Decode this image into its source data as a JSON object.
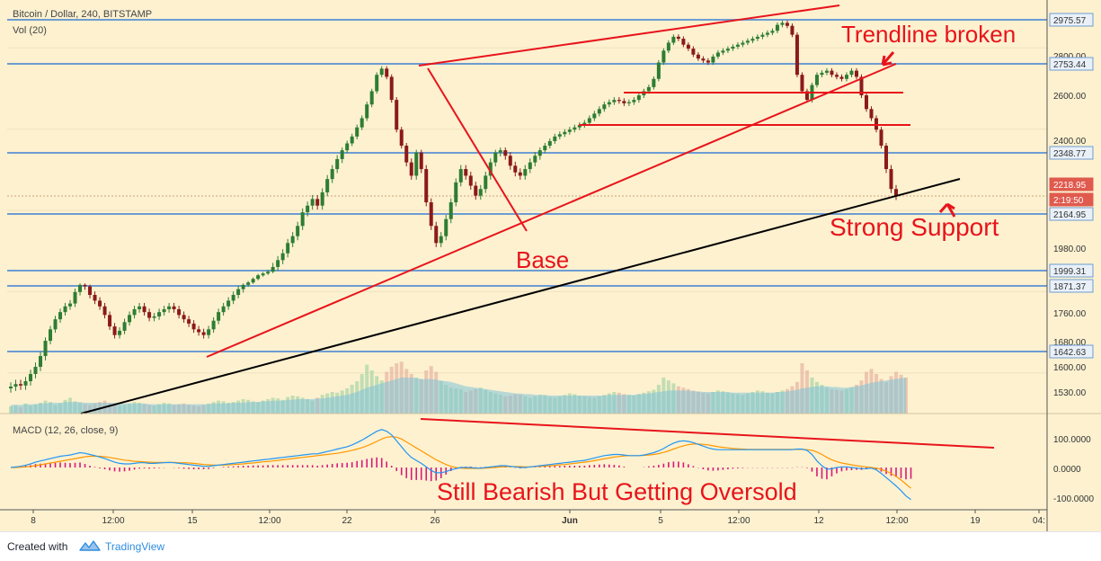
{
  "header": {
    "title": "Bitcoin / Dollar, 240, BITSTAMP",
    "vol_label": "Vol (20)",
    "macd_label": "MACD (12, 26, close, 9)"
  },
  "annotations": {
    "trendline_broken": "Trendline broken",
    "strong_support": "Strong Support",
    "base": "Base",
    "macd_note": "Still Bearish But Getting Oversold"
  },
  "footer": {
    "created_with": "Created with",
    "brand": "TradingView"
  },
  "colors": {
    "background": "#fdf1d0",
    "up_candle": "#2e7d32",
    "down_candle": "#8b1a1a",
    "annotation_red": "#e8141b",
    "support_line": "#000000",
    "level_line": "#6e9cd2",
    "macd_line": "#2196f3",
    "signal_line": "#ff9800",
    "histogram": "#d81b7a"
  },
  "chart_data": [
    {
      "type": "candlestick",
      "title": "Bitcoin / Dollar, 240, BITSTAMP",
      "x_tick_labels": [
        "8",
        "12:00",
        "15",
        "12:00",
        "22",
        "26",
        "Jun",
        "5",
        "12:00",
        "12",
        "12:00",
        "19",
        "04:"
      ],
      "y_tick_labels": [
        "2975.57",
        "2800.00",
        "2753.44",
        "2600.00",
        "2400.00",
        "2348.77",
        "2218.95",
        "2:19:50",
        "2164.95",
        "1980.00",
        "1999.31",
        "1871.37",
        "1760.00",
        "1680.00",
        "1642.63",
        "1600.00",
        "1530.00"
      ],
      "y_range": [
        1480,
        3080
      ],
      "price_levels": [
        2975.57,
        2753.44,
        2348.77,
        2164.95,
        1999.31,
        1871.37,
        1642.63
      ],
      "current_price": 2218.95,
      "countdown": "2:19:50",
      "grid": true,
      "close": [
        1545,
        1552,
        1548,
        1560,
        1580,
        1600,
        1630,
        1680,
        1720,
        1755,
        1780,
        1800,
        1810,
        1850,
        1880,
        1870,
        1840,
        1820,
        1800,
        1770,
        1730,
        1700,
        1715,
        1745,
        1770,
        1790,
        1800,
        1780,
        1760,
        1765,
        1780,
        1790,
        1800,
        1790,
        1770,
        1755,
        1740,
        1720,
        1710,
        1700,
        1720,
        1750,
        1780,
        1800,
        1820,
        1840,
        1860,
        1880,
        1900,
        1930,
        1960,
        1975,
        1990,
        2010,
        2030,
        2050,
        2080,
        2100,
        2130,
        2170,
        2190,
        2210,
        2190,
        2230,
        2270,
        2300,
        2330,
        2360,
        2390,
        2420,
        2460,
        2500,
        2560,
        2620,
        2700,
        2730,
        2690,
        2580,
        2450,
        2380,
        2320,
        2280,
        2350,
        2300,
        2200,
        2130,
        2080,
        2100,
        2150,
        2200,
        2260,
        2300,
        2280,
        2250,
        2220,
        2240,
        2280,
        2320,
        2350,
        2360,
        2340,
        2310,
        2290,
        2280,
        2300,
        2320,
        2340,
        2360,
        2380,
        2400,
        2420,
        2430,
        2440,
        2450,
        2460,
        2470,
        2480,
        2500,
        2520,
        2540,
        2560,
        2570,
        2580,
        2575,
        2565,
        2570,
        2580,
        2600,
        2620,
        2640,
        2680,
        2760,
        2820,
        2860,
        2890,
        2880,
        2850,
        2830,
        2800,
        2780,
        2770,
        2760,
        2790,
        2810,
        2820,
        2830,
        2840,
        2850,
        2860,
        2870,
        2880,
        2890,
        2900,
        2910,
        2920,
        2950,
        2960,
        2945,
        2900,
        2700,
        2620,
        2580,
        2650,
        2700,
        2710,
        2720,
        2700,
        2690,
        2680,
        2700,
        2720,
        2690,
        2600,
        2540,
        2500,
        2450,
        2380,
        2300,
        2240,
        2219
      ]
    },
    {
      "type": "bar",
      "title": "Vol (20)",
      "y_range": [
        0,
        100
      ],
      "values": [
        10,
        12,
        9,
        14,
        11,
        13,
        15,
        18,
        16,
        12,
        14,
        19,
        22,
        17,
        15,
        13,
        12,
        14,
        16,
        18,
        15,
        13,
        11,
        12,
        14,
        16,
        15,
        13,
        12,
        11,
        13,
        15,
        14,
        12,
        13,
        14,
        12,
        11,
        10,
        12,
        14,
        16,
        18,
        17,
        15,
        16,
        18,
        20,
        19,
        17,
        16,
        18,
        20,
        22,
        21,
        19,
        23,
        25,
        24,
        22,
        20,
        18,
        22,
        26,
        28,
        30,
        29,
        32,
        35,
        40,
        45,
        55,
        68,
        60,
        52,
        46,
        58,
        65,
        70,
        72,
        62,
        55,
        50,
        48,
        60,
        66,
        58,
        45,
        40,
        36,
        35,
        34,
        30,
        32,
        34,
        36,
        33,
        30,
        28,
        26,
        24,
        25,
        27,
        26,
        24,
        22,
        24,
        26,
        25,
        23,
        22,
        24,
        26,
        28,
        27,
        25,
        24,
        23,
        22,
        24,
        26,
        28,
        30,
        29,
        27,
        26,
        25,
        27,
        29,
        31,
        33,
        40,
        50,
        46,
        42,
        38,
        36,
        34,
        32,
        30,
        29,
        28,
        30,
        32,
        31,
        29,
        28,
        27,
        26,
        28,
        30,
        32,
        31,
        29,
        28,
        30,
        32,
        34,
        38,
        44,
        70,
        60,
        50,
        44,
        40,
        36,
        34,
        33,
        32,
        34,
        36,
        40,
        46,
        58,
        62,
        55,
        48,
        44,
        52,
        58,
        54,
        50
      ],
      "ma_values": [
        12,
        12,
        12,
        13,
        13,
        13,
        14,
        14,
        15,
        15,
        15,
        16,
        16,
        16,
        16,
        15,
        15,
        15,
        15,
        15,
        15,
        15,
        14,
        14,
        14,
        14,
        14,
        14,
        13,
        13,
        13,
        13,
        13,
        13,
        13,
        13,
        13,
        13,
        13,
        13,
        13,
        14,
        14,
        14,
        14,
        15,
        15,
        15,
        16,
        16,
        16,
        17,
        17,
        18,
        18,
        18,
        19,
        19,
        20,
        20,
        20,
        20,
        21,
        21,
        22,
        23,
        24,
        25,
        26,
        28,
        30,
        33,
        36,
        38,
        40,
        42,
        44,
        46,
        48,
        50,
        50,
        50,
        49,
        48,
        48,
        48,
        47,
        46,
        45,
        44,
        42,
        40,
        38,
        37,
        36,
        35,
        34,
        33,
        32,
        31,
        30,
        29,
        28,
        28,
        27,
        27,
        26,
        26,
        26,
        25,
        25,
        25,
        25,
        25,
        25,
        25,
        25,
        25,
        25,
        25,
        25,
        26,
        26,
        26,
        26,
        26,
        26,
        27,
        27,
        28,
        29,
        30,
        31,
        32,
        32,
        32,
        32,
        32,
        31,
        31,
        30,
        30,
        30,
        30,
        30,
        30,
        29,
        29,
        29,
        29,
        29,
        29,
        29,
        29,
        29,
        30,
        30,
        31,
        32,
        33,
        35,
        36,
        37,
        38,
        38,
        38,
        37,
        37,
        36,
        36,
        37,
        38,
        39,
        41,
        43,
        44,
        45,
        46,
        47,
        48,
        49,
        50
      ]
    },
    {
      "type": "line",
      "title": "MACD (12, 26, close, 9)",
      "y_tick_labels": [
        "100.0000",
        "0.0000",
        "-100.0000"
      ],
      "y_range": [
        -140,
        160
      ],
      "series": [
        {
          "name": "MACD",
          "values": [
            0,
            2,
            4,
            8,
            12,
            18,
            22,
            26,
            30,
            34,
            38,
            40,
            42,
            46,
            50,
            48,
            44,
            40,
            35,
            30,
            24,
            18,
            14,
            12,
            12,
            14,
            16,
            16,
            14,
            14,
            15,
            16,
            17,
            16,
            14,
            12,
            10,
            8,
            6,
            4,
            4,
            6,
            8,
            10,
            12,
            14,
            16,
            18,
            20,
            22,
            24,
            26,
            28,
            30,
            32,
            34,
            36,
            38,
            40,
            42,
            44,
            46,
            46,
            50,
            54,
            58,
            62,
            66,
            70,
            76,
            84,
            92,
            102,
            112,
            122,
            128,
            122,
            110,
            90,
            70,
            50,
            34,
            24,
            14,
            2,
            -10,
            -18,
            -18,
            -14,
            -8,
            -4,
            0,
            0,
            0,
            -2,
            -2,
            0,
            2,
            4,
            6,
            6,
            4,
            2,
            0,
            0,
            2,
            4,
            6,
            8,
            10,
            12,
            14,
            16,
            18,
            20,
            22,
            24,
            28,
            32,
            36,
            40,
            42,
            44,
            44,
            42,
            40,
            40,
            40,
            42,
            46,
            50,
            56,
            64,
            74,
            82,
            88,
            90,
            88,
            84,
            78,
            72,
            66,
            62,
            60,
            60,
            60,
            60,
            60,
            60,
            60,
            60,
            60,
            60,
            60,
            60,
            60,
            60,
            60,
            60,
            62,
            62,
            58,
            44,
            22,
            6,
            -6,
            -4,
            0,
            2,
            2,
            0,
            -2,
            -4,
            -4,
            -2,
            -8,
            -20,
            -34,
            -48,
            -62,
            -78,
            -96,
            -108
          ]
        },
        {
          "name": "Signal",
          "values": [
            0,
            0,
            1,
            2,
            4,
            6,
            9,
            12,
            15,
            18,
            21,
            24,
            27,
            30,
            33,
            36,
            38,
            38,
            38,
            36,
            34,
            31,
            28,
            25,
            23,
            21,
            20,
            19,
            18,
            17,
            17,
            17,
            17,
            17,
            16,
            16,
            15,
            14,
            12,
            10,
            9,
            8,
            8,
            8,
            9,
            10,
            11,
            12,
            14,
            15,
            17,
            19,
            20,
            22,
            24,
            26,
            28,
            30,
            32,
            34,
            36,
            38,
            40,
            42,
            44,
            46,
            48,
            51,
            54,
            58,
            62,
            67,
            73,
            80,
            88,
            96,
            102,
            104,
            102,
            96,
            86,
            76,
            66,
            56,
            46,
            36,
            26,
            18,
            10,
            4,
            0,
            -2,
            -3,
            -3,
            -3,
            -3,
            -2,
            -1,
            0,
            2,
            3,
            3,
            3,
            3,
            2,
            2,
            3,
            4,
            5,
            6,
            7,
            9,
            10,
            12,
            14,
            16,
            18,
            20,
            23,
            26,
            29,
            32,
            35,
            37,
            39,
            40,
            40,
            40,
            41,
            42,
            44,
            47,
            51,
            56,
            62,
            68,
            73,
            77,
            79,
            79,
            78,
            76,
            73,
            70,
            68,
            66,
            64,
            63,
            62,
            61,
            61,
            61,
            61,
            61,
            61,
            61,
            61,
            61,
            61,
            61,
            61,
            60,
            58,
            52,
            44,
            34,
            26,
            20,
            15,
            12,
            9,
            6,
            4,
            2,
            0,
            -2,
            -6,
            -12,
            -20,
            -30,
            -42,
            -56,
            -70
          ]
        },
        {
          "name": "Histogram",
          "values": [
            0,
            2,
            3,
            6,
            8,
            12,
            13,
            14,
            15,
            16,
            17,
            16,
            15,
            16,
            17,
            12,
            6,
            2,
            -3,
            -6,
            -10,
            -13,
            -14,
            -13,
            -11,
            -7,
            -4,
            -3,
            -4,
            -3,
            -2,
            -1,
            0,
            -1,
            -2,
            -4,
            -5,
            -6,
            -6,
            -6,
            -5,
            -2,
            0,
            2,
            3,
            4,
            5,
            6,
            6,
            7,
            7,
            7,
            8,
            8,
            8,
            8,
            8,
            8,
            8,
            8,
            8,
            8,
            6,
            8,
            10,
            12,
            14,
            15,
            16,
            18,
            22,
            25,
            29,
            32,
            34,
            32,
            20,
            6,
            -12,
            -26,
            -36,
            -42,
            -42,
            -42,
            -44,
            -46,
            -44,
            -36,
            -24,
            -12,
            -4,
            2,
            3,
            3,
            1,
            1,
            2,
            3,
            4,
            4,
            3,
            1,
            -1,
            -3,
            -2,
            0,
            1,
            2,
            3,
            4,
            5,
            5,
            6,
            6,
            6,
            6,
            6,
            8,
            9,
            10,
            11,
            10,
            9,
            7,
            3,
            0,
            0,
            0,
            1,
            4,
            6,
            9,
            13,
            18,
            20,
            20,
            17,
            11,
            5,
            -1,
            -6,
            -10,
            -11,
            -10,
            -8,
            -6,
            -4,
            -3,
            -2,
            -1,
            -1,
            -1,
            -1,
            -1,
            -1,
            -1,
            -1,
            -1,
            -1,
            1,
            1,
            -2,
            -14,
            -30,
            -38,
            -40,
            -30,
            -20,
            -13,
            -10,
            -9,
            -8,
            -8,
            -6,
            -2,
            -6,
            -14,
            -22,
            -28,
            -32,
            -36,
            -40,
            -38
          ]
        }
      ]
    }
  ]
}
